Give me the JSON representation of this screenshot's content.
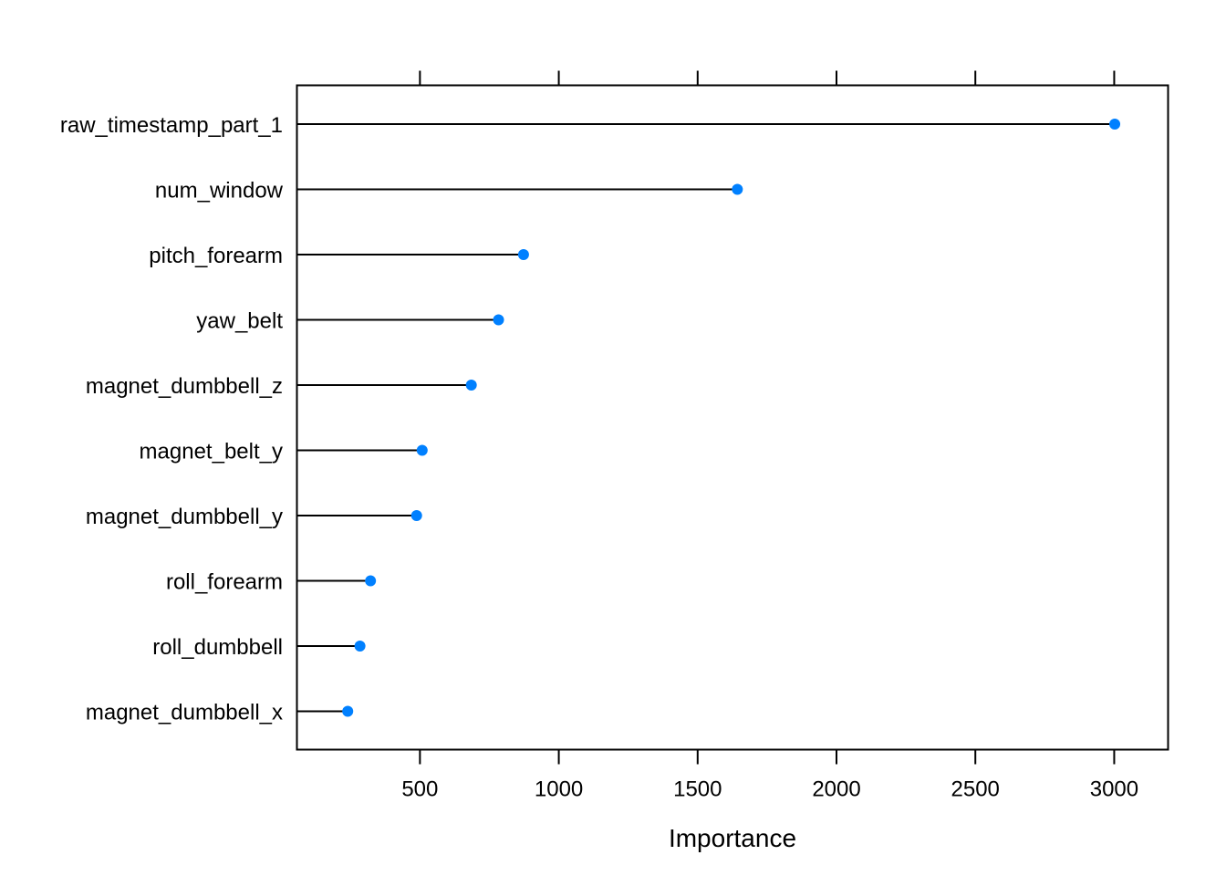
{
  "chart_data": {
    "type": "scatter",
    "style": "dot-plot with stems",
    "xlabel": "Importance",
    "xlim": [
      57,
      3194
    ],
    "xticks": [
      500,
      1000,
      1500,
      2000,
      2500,
      3000
    ],
    "marker_color": "#0080FF",
    "grid": false,
    "categories": [
      "raw_timestamp_part_1",
      "num_window",
      "pitch_forearm",
      "yaw_belt",
      "magnet_dumbbell_z",
      "magnet_belt_y",
      "magnet_dumbbell_y",
      "roll_forearm",
      "roll_dumbbell",
      "magnet_dumbbell_x"
    ],
    "values": [
      3002,
      1643,
      873,
      783,
      685,
      508,
      488,
      322,
      284,
      240
    ]
  }
}
